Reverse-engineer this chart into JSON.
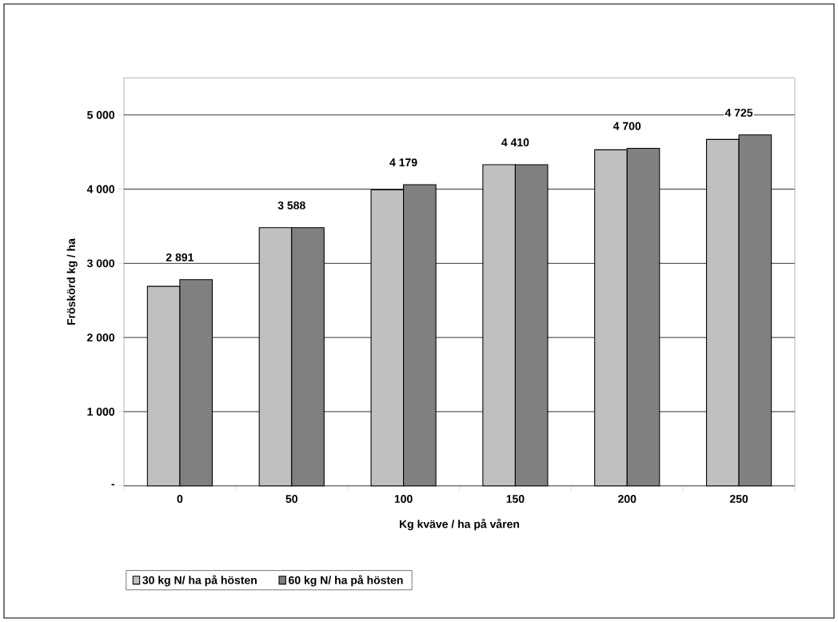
{
  "chart_data": {
    "type": "bar",
    "xlabel": "Kg kväve / ha på våren",
    "ylabel": "Fröskörd kg / ha",
    "categories": [
      "0",
      "50",
      "100",
      "150",
      "200",
      "250"
    ],
    "series": [
      {
        "name": "30 kg N/ ha på hösten",
        "color": "#c0c0c0",
        "values": [
          2690,
          3480,
          3990,
          4330,
          4530,
          4670
        ]
      },
      {
        "name": "60 kg N/ ha på hösten",
        "color": "#808080",
        "values": [
          2780,
          3480,
          4060,
          4330,
          4550,
          4730
        ]
      }
    ],
    "annotations": [
      "2 891",
      "3 588",
      "4 179",
      "4 410",
      "4 700",
      "4 725"
    ],
    "ylim": [
      0,
      5500
    ],
    "yticks": [
      {
        "value": 0,
        "label": "-"
      },
      {
        "value": 1000,
        "label": "1 000"
      },
      {
        "value": 2000,
        "label": "2 000"
      },
      {
        "value": 3000,
        "label": "3 000"
      },
      {
        "value": 4000,
        "label": "4 000"
      },
      {
        "value": 5000,
        "label": "5 000"
      }
    ],
    "grid": "y",
    "legend": "bottom"
  }
}
